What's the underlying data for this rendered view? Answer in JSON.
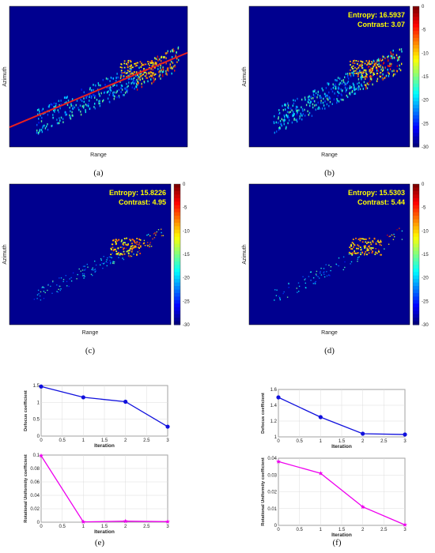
{
  "chart_data": [
    {
      "id": "a",
      "type": "heatmap",
      "panel_label": "(a)",
      "xlabel": "Range",
      "ylabel": "Azimuth",
      "overlay": "red line along ship axis",
      "annotations": [],
      "colorbar": null
    },
    {
      "id": "b",
      "type": "heatmap",
      "panel_label": "(b)",
      "xlabel": "Range",
      "ylabel": "Azimuth",
      "annotations": [
        "Entropy: 16.5937",
        "Contrast: 3.07"
      ],
      "colorbar": {
        "ticks": [
          "0",
          "-5",
          "-10",
          "-15",
          "-20",
          "-25",
          "-30"
        ],
        "range": [
          -30,
          0
        ]
      }
    },
    {
      "id": "c",
      "type": "heatmap",
      "panel_label": "(c)",
      "xlabel": "Range",
      "ylabel": "Azimuth",
      "annotations": [
        "Entropy: 15.8226",
        "Contrast: 4.95"
      ],
      "colorbar": {
        "ticks": [
          "0",
          "-5",
          "-10",
          "-15",
          "-20",
          "-25",
          "-30"
        ],
        "range": [
          -30,
          0
        ]
      }
    },
    {
      "id": "d",
      "type": "heatmap",
      "panel_label": "(d)",
      "xlabel": "Range",
      "ylabel": "Azimuth",
      "annotations": [
        "Entropy: 15.5303",
        "Contrast: 5.44"
      ],
      "colorbar": {
        "ticks": [
          "0",
          "-5",
          "-10",
          "-15",
          "-20",
          "-25",
          "-30"
        ],
        "range": [
          -30,
          0
        ]
      }
    },
    {
      "id": "e1",
      "type": "line",
      "panel_label": "(e)",
      "x": [
        0,
        1,
        2,
        3
      ],
      "y": [
        1.47,
        1.15,
        1.02,
        0.28
      ],
      "color": "#1010dd",
      "marker": "circle",
      "xlabel": "Iteration",
      "ylabel": "Defocus coefficient",
      "xlim": [
        0,
        3
      ],
      "ylim": [
        0,
        1.5
      ],
      "xticks": [
        "0",
        "0.5",
        "1",
        "1.5",
        "2",
        "2.5",
        "3"
      ],
      "yticks": [
        "0",
        "0.5",
        "1",
        "1.5"
      ],
      "grid": true
    },
    {
      "id": "e2",
      "type": "line",
      "panel_label": "(e)",
      "x": [
        0,
        1,
        2,
        3
      ],
      "y": [
        0.099,
        0.0005,
        0.0015,
        0.0008
      ],
      "color": "#ee00ee",
      "marker": "star",
      "xlabel": "Iteration",
      "ylabel": "Rotational Uniformity coefficient",
      "xlim": [
        0,
        3
      ],
      "ylim": [
        0,
        0.1
      ],
      "xticks": [
        "0",
        "0.5",
        "1",
        "1.5",
        "2",
        "2.5",
        "3"
      ],
      "yticks": [
        "0",
        "0.02",
        "0.04",
        "0.06",
        "0.08",
        "0.1"
      ],
      "grid": true
    },
    {
      "id": "f1",
      "type": "line",
      "panel_label": "(f)",
      "x": [
        0,
        1,
        2,
        3
      ],
      "y": [
        1.5,
        1.25,
        1.04,
        1.03
      ],
      "color": "#1010dd",
      "marker": "circle",
      "xlabel": "Iteration",
      "ylabel": "Defocus coefficient",
      "xlim": [
        0,
        3
      ],
      "ylim": [
        1,
        1.6
      ],
      "xticks": [
        "0",
        "0.5",
        "1",
        "1.5",
        "2",
        "2.5",
        "3"
      ],
      "yticks": [
        "1",
        "1.2",
        "1.4",
        "1.6"
      ],
      "grid": true
    },
    {
      "id": "f2",
      "type": "line",
      "panel_label": "(f)",
      "x": [
        0,
        1,
        2,
        3
      ],
      "y": [
        0.038,
        0.031,
        0.011,
        0.0003
      ],
      "color": "#ee00ee",
      "marker": "star",
      "xlabel": "Iteration",
      "ylabel": "Rotational Uniformity coefficient",
      "xlim": [
        0,
        3
      ],
      "ylim": [
        0,
        0.04
      ],
      "xticks": [
        "0",
        "0.5",
        "1",
        "1.5",
        "2",
        "2.5",
        "3"
      ],
      "yticks": [
        "0",
        "0.01",
        "0.02",
        "0.03",
        "0.04"
      ],
      "grid": true
    }
  ],
  "panel_labels": [
    "(a)",
    "(b)",
    "(c)",
    "(d)",
    "(e)",
    "(f)"
  ]
}
